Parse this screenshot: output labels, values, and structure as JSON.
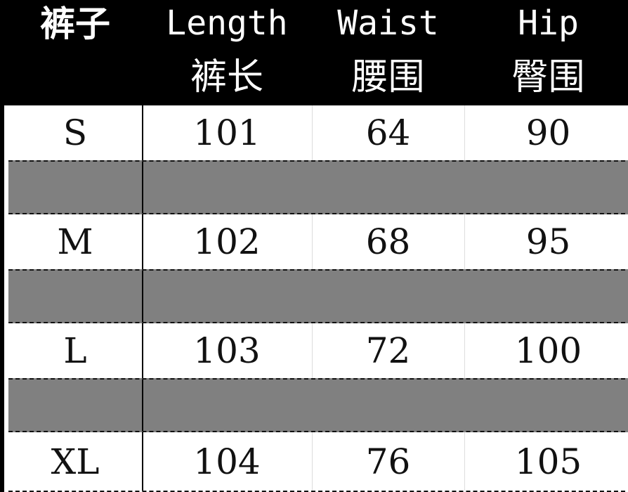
{
  "header": {
    "title": "裤子",
    "columns": [
      {
        "en": "Length",
        "zh": "裤长"
      },
      {
        "en": "Waist",
        "zh": "腰围"
      },
      {
        "en": "Hip",
        "zh": "臀围"
      }
    ]
  },
  "rows": [
    {
      "size": "S",
      "length": "101",
      "waist": "64",
      "hip": "90"
    },
    {
      "size": "M",
      "length": "102",
      "waist": "68",
      "hip": "95"
    },
    {
      "size": "L",
      "length": "103",
      "waist": "72",
      "hip": "100"
    },
    {
      "size": "XL",
      "length": "104",
      "waist": "76",
      "hip": "105"
    }
  ],
  "colors": {
    "header_bg": "#000000",
    "separator_bg": "#808080"
  }
}
